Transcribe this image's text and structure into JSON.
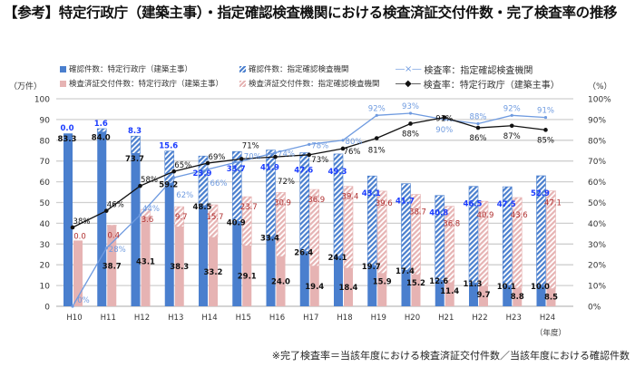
{
  "title": "【参考】特定行政庁（建築主事）・指定確認検査機関における検査済証交付件数・完了検査率の推移",
  "footnote": "※完了検査率＝当該年度における検査済証交付件数／当該年度における確認件数",
  "chart_data": {
    "type": "bar",
    "title": "【参考】特定行政庁（建築主事）・指定確認検査機関における検査済証交付件数・完了検査率の推移",
    "categories": [
      "H10",
      "H11",
      "H12",
      "H13",
      "H14",
      "H15",
      "H16",
      "H17",
      "H18",
      "H19",
      "H20",
      "H21",
      "H22",
      "H23",
      "H24"
    ],
    "xlabel": "（年度）",
    "ylabel": "（万件）",
    "ylabel_right": "（%）",
    "ylim": [
      0,
      100
    ],
    "yticks": [
      0,
      10,
      20,
      30,
      40,
      50,
      60,
      70,
      80,
      90,
      100
    ],
    "ylim_right": [
      0,
      100
    ],
    "yticks_right": [
      "0%",
      "10%",
      "20%",
      "30%",
      "40%",
      "50%",
      "60%",
      "70%",
      "80%",
      "90%",
      "100%"
    ],
    "grid": true,
    "legend": "top",
    "series": [
      {
        "name": "確認件数：特定行政庁（建築主事）",
        "type": "stacked-bar",
        "stack": "kakunin",
        "color": "#4a7fce",
        "pattern": "solid",
        "values": [
          83.3,
          84.0,
          73.7,
          59.2,
          48.5,
          40.9,
          33.4,
          26.4,
          24.1,
          19.7,
          17.4,
          12.6,
          11.3,
          10.1,
          10.0
        ],
        "label_color": "#111"
      },
      {
        "name": "確認件数：指定確認検査機関",
        "type": "stacked-bar",
        "stack": "kakunin",
        "color": "#4a7fce",
        "pattern": "hatched",
        "values": [
          0.0,
          1.6,
          8.3,
          15.6,
          23.9,
          33.7,
          41.9,
          47.6,
          49.3,
          43.1,
          41.7,
          40.8,
          46.5,
          47.5,
          52.9
        ],
        "label_color": "#1a3cff"
      },
      {
        "name": "検査済証交付件数：特定行政庁（建築主事）",
        "type": "stacked-bar",
        "stack": "kensa",
        "color": "#e6b3b3",
        "pattern": "solid",
        "values": [
          31.7,
          38.7,
          43.1,
          38.3,
          33.2,
          29.1,
          24.0,
          19.4,
          18.4,
          15.9,
          15.2,
          11.4,
          9.7,
          8.8,
          8.5
        ],
        "labels": [
          "",
          "38.7",
          "43.1",
          "38.3",
          "33.2",
          "29.1",
          "24.0",
          "19.4",
          "18.4",
          "15.9",
          "15.2",
          "11.4",
          "9.7",
          "8.8",
          "8.5"
        ],
        "label_color": "#111"
      },
      {
        "name": "検査済証交付件数：指定確認検査機関",
        "type": "stacked-bar",
        "stack": "kensa",
        "color": "#e6b3b3",
        "pattern": "hatched",
        "values": [
          0.0,
          0.4,
          3.6,
          9.7,
          15.7,
          23.7,
          30.9,
          36.9,
          39.4,
          39.6,
          38.7,
          36.8,
          40.9,
          43.6,
          47.1
        ],
        "label_color": "#b03030"
      },
      {
        "name": "検査率：指定確認検査機関",
        "type": "line",
        "axis": "right",
        "color": "#6f9be0",
        "marker": "x",
        "values": [
          0,
          28,
          44,
          62,
          66,
          70,
          74,
          78,
          80,
          92,
          93,
          90,
          88,
          92,
          91
        ],
        "label_color": "#6f9be0"
      },
      {
        "name": "検査率：特定行政庁（建築主事）",
        "type": "line",
        "axis": "right",
        "color": "#111111",
        "marker": "diamond",
        "values": [
          38,
          46,
          58,
          65,
          69,
          71,
          72,
          73,
          76,
          81,
          88,
          91,
          86,
          87,
          85
        ],
        "label_color": "#111"
      }
    ]
  }
}
